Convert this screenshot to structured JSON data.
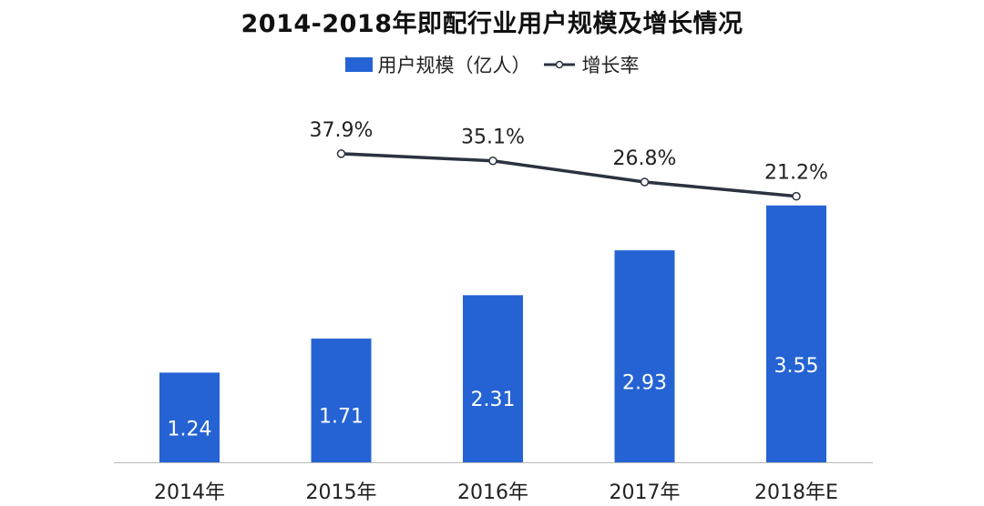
{
  "chart_data": {
    "type": "bar",
    "title": "2014-2018年即配行业用户规模及增长情况",
    "categories": [
      "2014年",
      "2015年",
      "2016年",
      "2017年",
      "2018年E"
    ],
    "series": [
      {
        "name": "用户规模（亿人）",
        "type": "bar",
        "values": [
          1.24,
          1.71,
          2.31,
          2.93,
          3.55
        ]
      },
      {
        "name": "增长率",
        "type": "line",
        "values": [
          null,
          37.9,
          35.1,
          26.8,
          21.2
        ]
      }
    ],
    "bar_labels": [
      "1.24",
      "1.71",
      "2.31",
      "2.93",
      "3.55"
    ],
    "line_labels": [
      "",
      "37.9%",
      "35.1%",
      "26.8%",
      "21.2%"
    ],
    "bar_ylim": [
      0,
      4.4
    ],
    "line_ylim": [
      0,
      50
    ],
    "grid": false,
    "legend_placement": "top-center",
    "colors": {
      "bar": "#2563d4",
      "line": "#2b3240",
      "point_fill": "#ffffff"
    }
  }
}
